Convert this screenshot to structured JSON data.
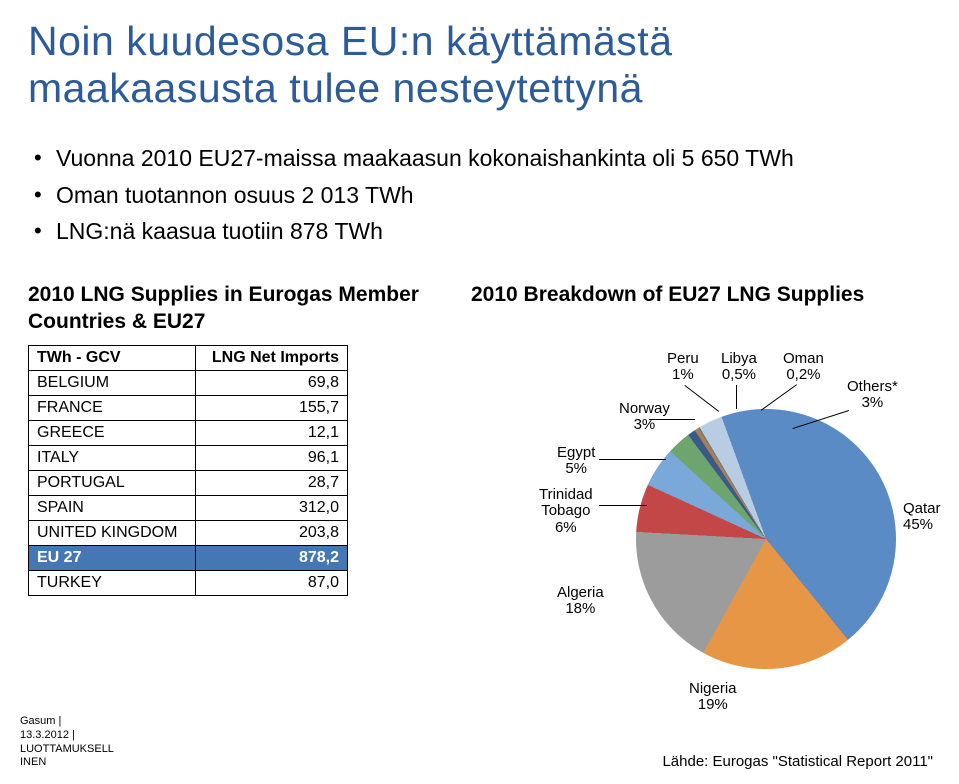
{
  "title_color": "#2d5b9a",
  "title_line1": "Noin kuudesosa EU:n käyttämästä",
  "title_line2": "maakaasusta tulee nesteytettynä",
  "bullet1": "Vuonna 2010 EU27-maissa maakaasun kokonaishankinta oli 5 650 TWh",
  "bullet2": "Oman tuotannon osuus 2 013 TWh",
  "bullet3": "LNG:nä kaasua tuotiin 878 TWh",
  "left_heading": "2010 LNG Supplies in Eurogas Member Countries & EU27",
  "table_head_a": "TWh - GCV",
  "table_head_b": "LNG Net Imports",
  "rows": [
    {
      "c": "BELGIUM",
      "v": "69,8"
    },
    {
      "c": "FRANCE",
      "v": "155,7"
    },
    {
      "c": "GREECE",
      "v": "12,1"
    },
    {
      "c": "ITALY",
      "v": "96,1"
    },
    {
      "c": "PORTUGAL",
      "v": "28,7"
    },
    {
      "c": "SPAIN",
      "v": "312,0"
    },
    {
      "c": "UNITED KINGDOM",
      "v": "203,8"
    },
    {
      "c": "EU 27",
      "v": "878,2"
    },
    {
      "c": "TURKEY",
      "v": "87,0"
    }
  ],
  "eu27_highlight_bg": "#4577b5",
  "eu27_highlight_fg": "#ffffff",
  "right_heading": "2010 Breakdown of EU27 LNG Supplies",
  "pie": {
    "slices": [
      {
        "label": "Qatar",
        "pct": 45,
        "color": "#5b8bc5",
        "lbl": "Qatar\n45%"
      },
      {
        "label": "Nigeria",
        "pct": 19,
        "color": "#e79645",
        "lbl": "Nigeria\n19%"
      },
      {
        "label": "Algeria",
        "pct": 18,
        "color": "#9c9c9c",
        "lbl": "Algeria\n18%"
      },
      {
        "label": "Trinidad Tobago",
        "pct": 6,
        "color": "#c44747",
        "lbl": "Trinidad\nTobago\n6%"
      },
      {
        "label": "Egypt",
        "pct": 5,
        "color": "#7aa8d8",
        "lbl": "Egypt\n5%"
      },
      {
        "label": "Norway",
        "pct": 3,
        "color": "#6ea56e",
        "lbl": "Norway\n3%"
      },
      {
        "label": "Peru",
        "pct": 1,
        "color": "#3a5b8a",
        "lbl": "Peru\n1%"
      },
      {
        "label": "Libya",
        "pct": 0.5,
        "color": "#a87f54",
        "lbl": "Libya\n0,5%"
      },
      {
        "label": "Oman",
        "pct": 0.2,
        "color": "#7a7a7a",
        "lbl": "Oman\n0,2%"
      },
      {
        "label": "Others*",
        "pct": 3,
        "color": "#b8cde4",
        "lbl": "Others*\n3%"
      }
    ],
    "label_fontsize": 15
  },
  "footer_left": "Gasum |\n13.3.2012 |\nLUOTTAMUKSELL\nINEN",
  "footer_right": "Lähde: Eurogas \"Statistical Report 2011\""
}
